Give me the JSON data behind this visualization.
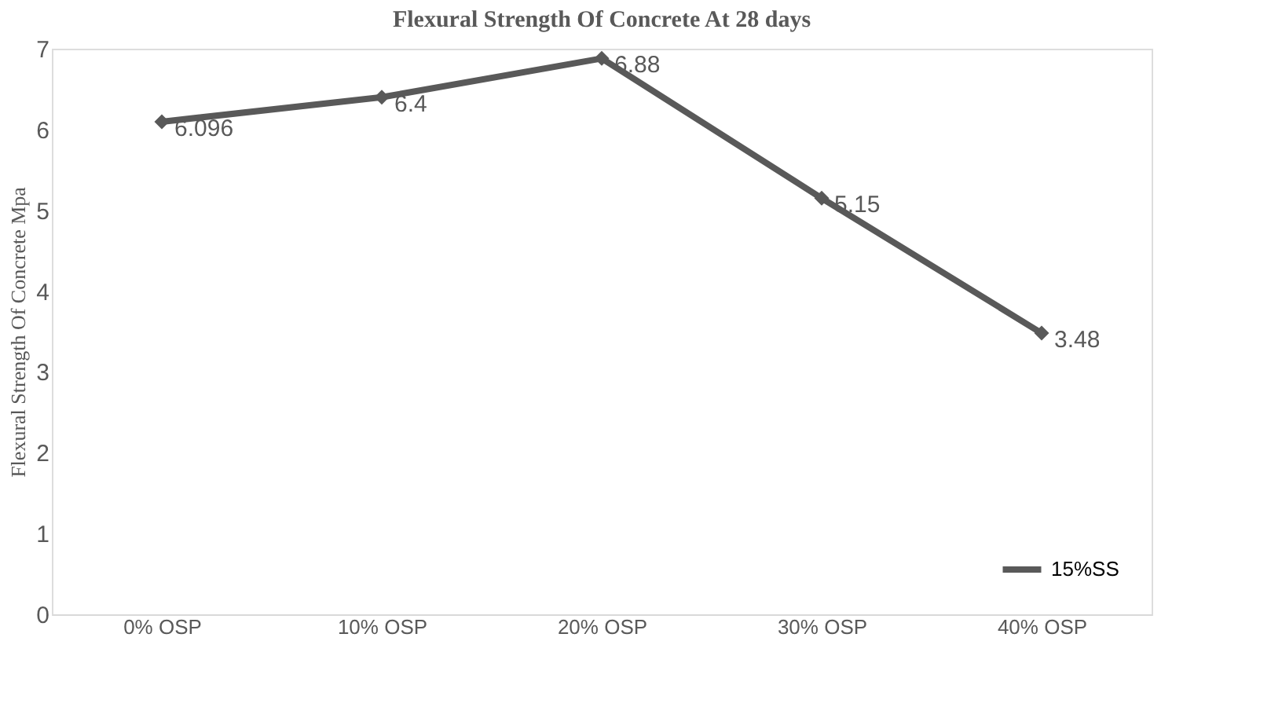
{
  "chart_data": {
    "type": "line",
    "title": "Flexural Strength Of Concrete At 28 days",
    "ylabel": "Flexural Strength Of Concrete Mpa",
    "categories": [
      "0% OSP",
      "10% OSP",
      "20% OSP",
      "30% OSP",
      "40% OSP"
    ],
    "series": [
      {
        "name": "15%SS",
        "color": "#595959",
        "values": [
          6.096,
          6.4,
          6.88,
          5.15,
          3.48
        ]
      }
    ],
    "ylim": [
      0,
      7
    ],
    "yticks": [
      0,
      1,
      2,
      3,
      4,
      5,
      6,
      7
    ],
    "grid": false,
    "legend": "bottom right",
    "marker": "diamond",
    "line_style": "solid",
    "data_labels": true
  }
}
